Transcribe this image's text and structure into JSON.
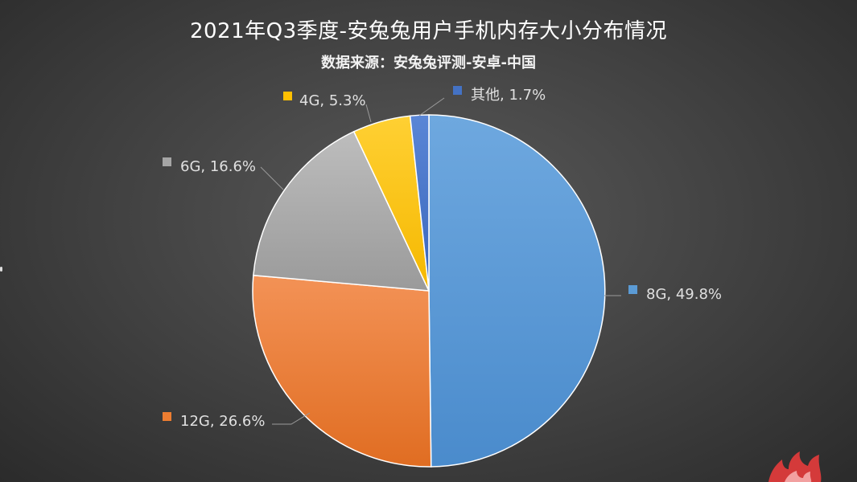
{
  "chart_data": {
    "type": "pie",
    "title": "2021年Q3季度-安兔兔用户手机内存大小分布情况",
    "subtitle": "数据来源：安兔兔评测-安卓-中国",
    "slices": [
      {
        "label": "8G",
        "value": 49.8,
        "display": "8G, 49.8%",
        "color": "#5b9bd5"
      },
      {
        "label": "12G",
        "value": 26.6,
        "display": "12G, 26.6%",
        "color": "#ed7d31"
      },
      {
        "label": "6G",
        "value": 16.6,
        "display": "6G, 16.6%",
        "color": "#a5a5a5"
      },
      {
        "label": "4G",
        "value": 5.3,
        "display": "4G, 5.3%",
        "color": "#ffc000"
      },
      {
        "label": "其他",
        "value": 1.7,
        "display": "其他, 1.7%",
        "color": "#4472c4"
      }
    ]
  }
}
